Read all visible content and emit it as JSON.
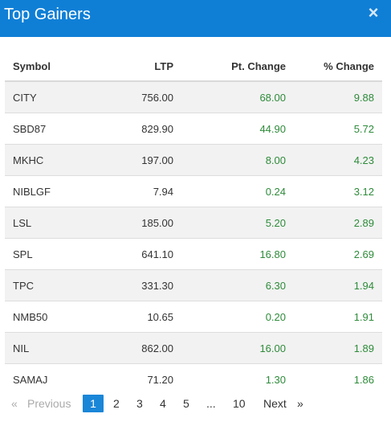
{
  "header": {
    "title": "Top Gainers",
    "close_label": "×"
  },
  "table": {
    "headers": {
      "symbol": "Symbol",
      "ltp": "LTP",
      "pt_change": "Pt. Change",
      "pct_change": "% Change"
    },
    "rows": [
      {
        "symbol": "CITY",
        "ltp": "756.00",
        "pt_change": "68.00",
        "pct_change": "9.88"
      },
      {
        "symbol": "SBD87",
        "ltp": "829.90",
        "pt_change": "44.90",
        "pct_change": "5.72"
      },
      {
        "symbol": "MKHC",
        "ltp": "197.00",
        "pt_change": "8.00",
        "pct_change": "4.23"
      },
      {
        "symbol": "NIBLGF",
        "ltp": "7.94",
        "pt_change": "0.24",
        "pct_change": "3.12"
      },
      {
        "symbol": "LSL",
        "ltp": "185.00",
        "pt_change": "5.20",
        "pct_change": "2.89"
      },
      {
        "symbol": "SPL",
        "ltp": "641.10",
        "pt_change": "16.80",
        "pct_change": "2.69"
      },
      {
        "symbol": "TPC",
        "ltp": "331.30",
        "pt_change": "6.30",
        "pct_change": "1.94"
      },
      {
        "symbol": "NMB50",
        "ltp": "10.65",
        "pt_change": "0.20",
        "pct_change": "1.91"
      },
      {
        "symbol": "NIL",
        "ltp": "862.00",
        "pt_change": "16.00",
        "pct_change": "1.89"
      },
      {
        "symbol": "SAMAJ",
        "ltp": "71.20",
        "pt_change": "1.30",
        "pct_change": "1.86"
      }
    ]
  },
  "pagination": {
    "first": "«",
    "previous": "Previous",
    "pages": [
      "1",
      "2",
      "3",
      "4",
      "5"
    ],
    "ellipsis": "...",
    "last_page": "10",
    "next": "Next",
    "last": "»",
    "current": "1"
  },
  "colors": {
    "header_bg": "#0f7fd6",
    "positive": "#2e8b3a",
    "active_page": "#1a86d8"
  }
}
